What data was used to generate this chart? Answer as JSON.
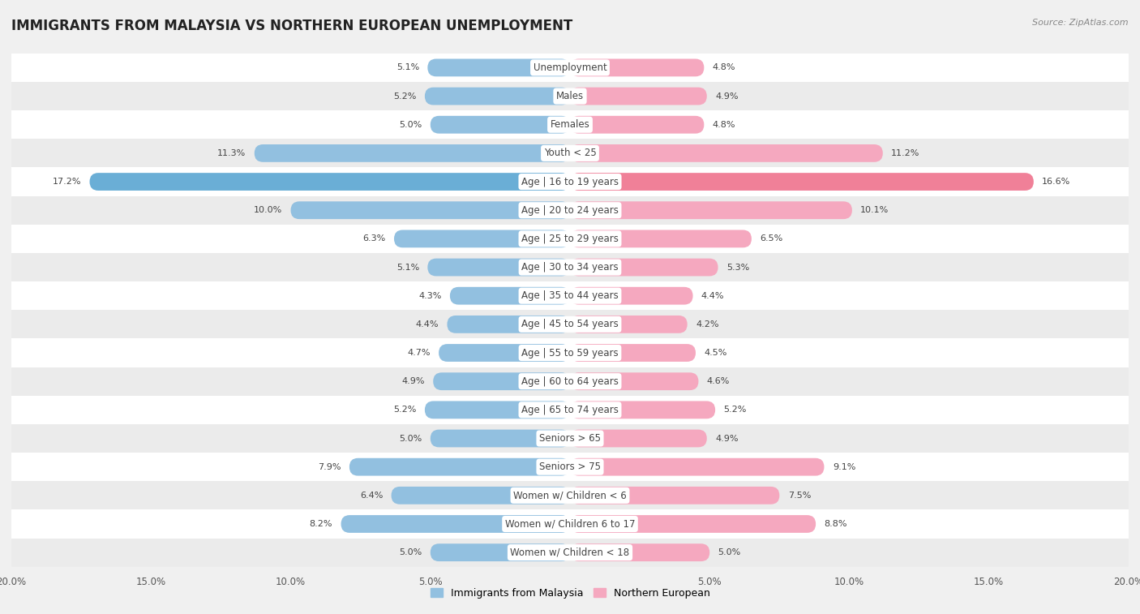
{
  "title": "IMMIGRANTS FROM MALAYSIA VS NORTHERN EUROPEAN UNEMPLOYMENT",
  "source": "Source: ZipAtlas.com",
  "categories": [
    "Unemployment",
    "Males",
    "Females",
    "Youth < 25",
    "Age | 16 to 19 years",
    "Age | 20 to 24 years",
    "Age | 25 to 29 years",
    "Age | 30 to 34 years",
    "Age | 35 to 44 years",
    "Age | 45 to 54 years",
    "Age | 55 to 59 years",
    "Age | 60 to 64 years",
    "Age | 65 to 74 years",
    "Seniors > 65",
    "Seniors > 75",
    "Women w/ Children < 6",
    "Women w/ Children 6 to 17",
    "Women w/ Children < 18"
  ],
  "malaysia_values": [
    5.1,
    5.2,
    5.0,
    11.3,
    17.2,
    10.0,
    6.3,
    5.1,
    4.3,
    4.4,
    4.7,
    4.9,
    5.2,
    5.0,
    7.9,
    6.4,
    8.2,
    5.0
  ],
  "northern_values": [
    4.8,
    4.9,
    4.8,
    11.2,
    16.6,
    10.1,
    6.5,
    5.3,
    4.4,
    4.2,
    4.5,
    4.6,
    5.2,
    4.9,
    9.1,
    7.5,
    8.8,
    5.0
  ],
  "malaysia_color": "#92c0e0",
  "northern_color": "#f5a8bf",
  "malaysia_highlight_color": "#6aaed6",
  "northern_highlight_color": "#f08098",
  "row_color_odd": "#f5f5f5",
  "row_color_even": "#e8e8e8",
  "background_color": "#f0f0f0",
  "xlim": 20.0,
  "legend_malaysia": "Immigrants from Malaysia",
  "legend_northern": "Northern European",
  "title_fontsize": 12,
  "label_fontsize": 8.5,
  "value_fontsize": 8.0,
  "tick_fontsize": 8.5
}
